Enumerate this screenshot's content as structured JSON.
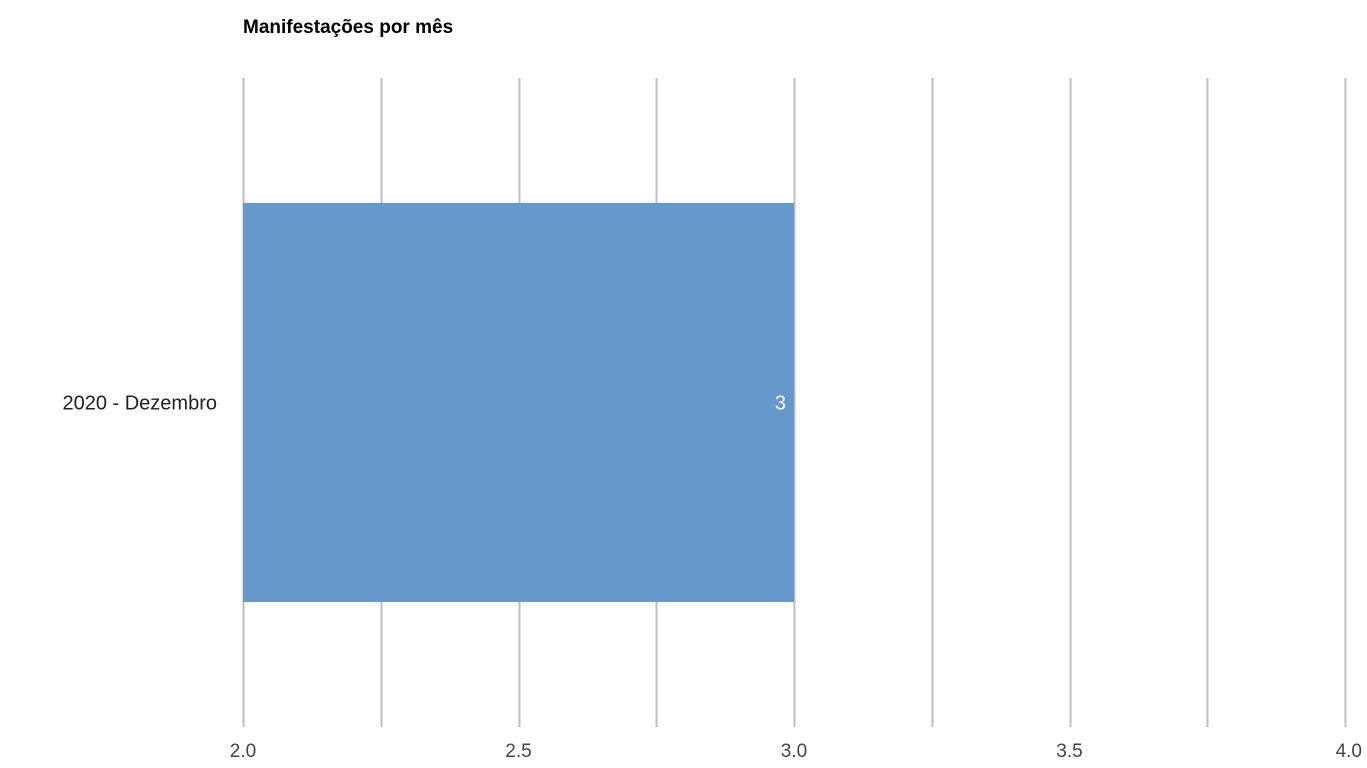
{
  "chart_data": {
    "type": "bar",
    "orientation": "horizontal",
    "title": "Manifestações por mês",
    "categories": [
      "2020 - Dezembro"
    ],
    "values": [
      3
    ],
    "data_labels": [
      "3"
    ],
    "xlim": [
      2.0,
      4.0
    ],
    "x_ticks": [
      2.0,
      2.5,
      3.0,
      3.5,
      4.0
    ],
    "x_tick_labels": [
      "2.0",
      "2.5",
      "3.0",
      "3.5",
      "4.0"
    ],
    "minor_gridlines": [
      2.25,
      2.75,
      3.25,
      3.75
    ],
    "grid": true,
    "legend": "none",
    "xlabel": "",
    "ylabel": "",
    "colors": {
      "bar": "#6798CC",
      "gridline": "#BDBDBD",
      "data_label": "#FFFFFF",
      "title": "#000000",
      "tick_label": "#444444",
      "category_label": "#222222"
    }
  }
}
